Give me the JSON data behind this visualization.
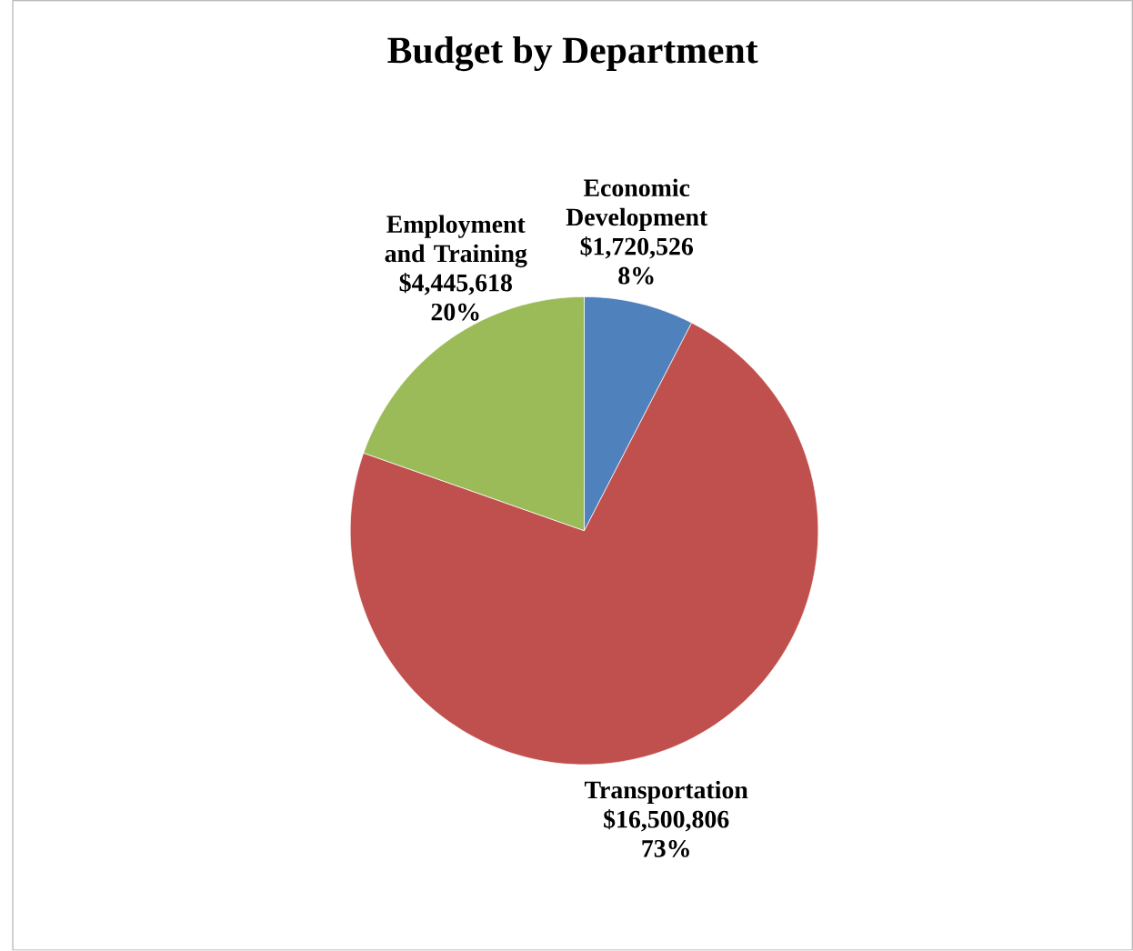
{
  "chart_data": {
    "type": "pie",
    "title": "Budget by Department",
    "categories": [
      "Economic Development",
      "Transportation",
      "Employment and Training"
    ],
    "values": [
      1720526,
      16500806,
      4445618
    ],
    "colors": [
      "#4f81bd",
      "#c0504d",
      "#9bbb59"
    ],
    "value_labels": [
      "$1,720,526",
      "$16,500,806",
      "$4,445,618"
    ],
    "annotations": [
      "8%",
      "73%",
      "20%"
    ]
  }
}
